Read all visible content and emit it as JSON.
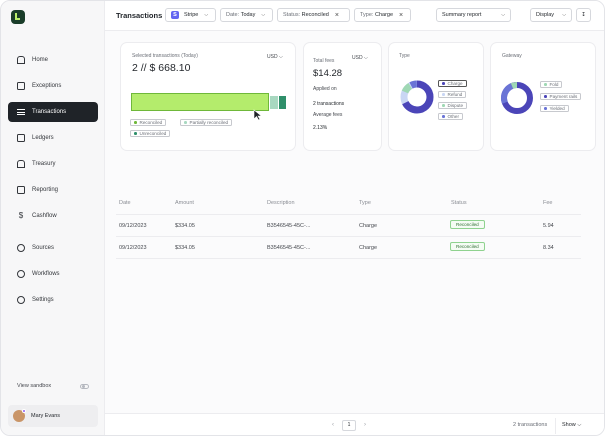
{
  "header": {
    "title": "Transactions",
    "filters": [
      {
        "label": "Stripe",
        "badge": "S"
      },
      {
        "label": "Date:",
        "value": "Today"
      },
      {
        "label": "Status:",
        "value": "Reconciled"
      },
      {
        "label": "Type:",
        "value": "Charge"
      }
    ],
    "summary_label": "Summary report",
    "display_label": "Display"
  },
  "sidebar": {
    "items": [
      {
        "label": "Home",
        "icon": "home-icon"
      },
      {
        "label": "Exceptions",
        "icon": "inbox-icon"
      },
      {
        "label": "Transactions",
        "icon": "list-icon",
        "active": true
      },
      {
        "label": "Ledgers",
        "icon": "book-icon"
      },
      {
        "label": "Treasury",
        "icon": "bank-icon"
      },
      {
        "label": "Reporting",
        "icon": "clipboard-icon"
      },
      {
        "label": "Cashflow",
        "icon": "dollar-icon"
      },
      {
        "label": "Sources",
        "icon": "link-icon"
      },
      {
        "label": "Workflows",
        "icon": "sparkle-icon"
      },
      {
        "label": "Settings",
        "icon": "gear-icon"
      }
    ],
    "sandbox_label": "View sandbox",
    "user_name": "Mary Evans"
  },
  "selected_card": {
    "label": "Selected transactions (Today)",
    "currency": "USD",
    "count": "2",
    "separator": "//",
    "amount": "$ 668.10",
    "reconciled_fraction": 0.89,
    "legend": [
      "Reconciled",
      "Partially reconciled",
      "Unreconciled"
    ],
    "colors": {
      "reconciled": "#b4ec6c",
      "partial": "#a8d8c0",
      "unreconciled": "#2f8f6a"
    }
  },
  "fees_card": {
    "label": "Total fees",
    "currency": "USD",
    "amount": "$14.28",
    "applied_on_label": "Applied on",
    "applied_on_value": "2 transactions",
    "avg_label": "Average fees",
    "avg_value": "2.13%"
  },
  "type_card": {
    "label": "Type",
    "legend": [
      {
        "label": "Charge",
        "color": "#4b45b8"
      },
      {
        "label": "Refund",
        "color": "#c9d6f4"
      },
      {
        "label": "Dispute",
        "color": "#9fd8b4"
      },
      {
        "label": "Other",
        "color": "#6a74d6"
      }
    ]
  },
  "gateway_card": {
    "label": "Gateway",
    "legend": [
      {
        "label": "Fold",
        "color": "#9fd8b4"
      },
      {
        "label": "Payment rails",
        "color": "#4b45b8"
      },
      {
        "label": "Yielded",
        "color": "#6a74d6"
      }
    ]
  },
  "table": {
    "columns": [
      "Date",
      "Amount",
      "Description",
      "Type",
      "Status",
      "Fee"
    ],
    "rows": [
      {
        "date": "09/12/2023",
        "amount": "$334.05",
        "description": "B3546545-45C-...",
        "type": "Charge",
        "status": "Reconciled",
        "fee": "5.94"
      },
      {
        "date": "09/12/2023",
        "amount": "$334.05",
        "description": "B3546545-45C-...",
        "type": "Charge",
        "status": "Reconciled",
        "fee": "8.34"
      }
    ]
  },
  "footer": {
    "page": "1",
    "count_label": "2 transactions",
    "show_label": "Show"
  }
}
